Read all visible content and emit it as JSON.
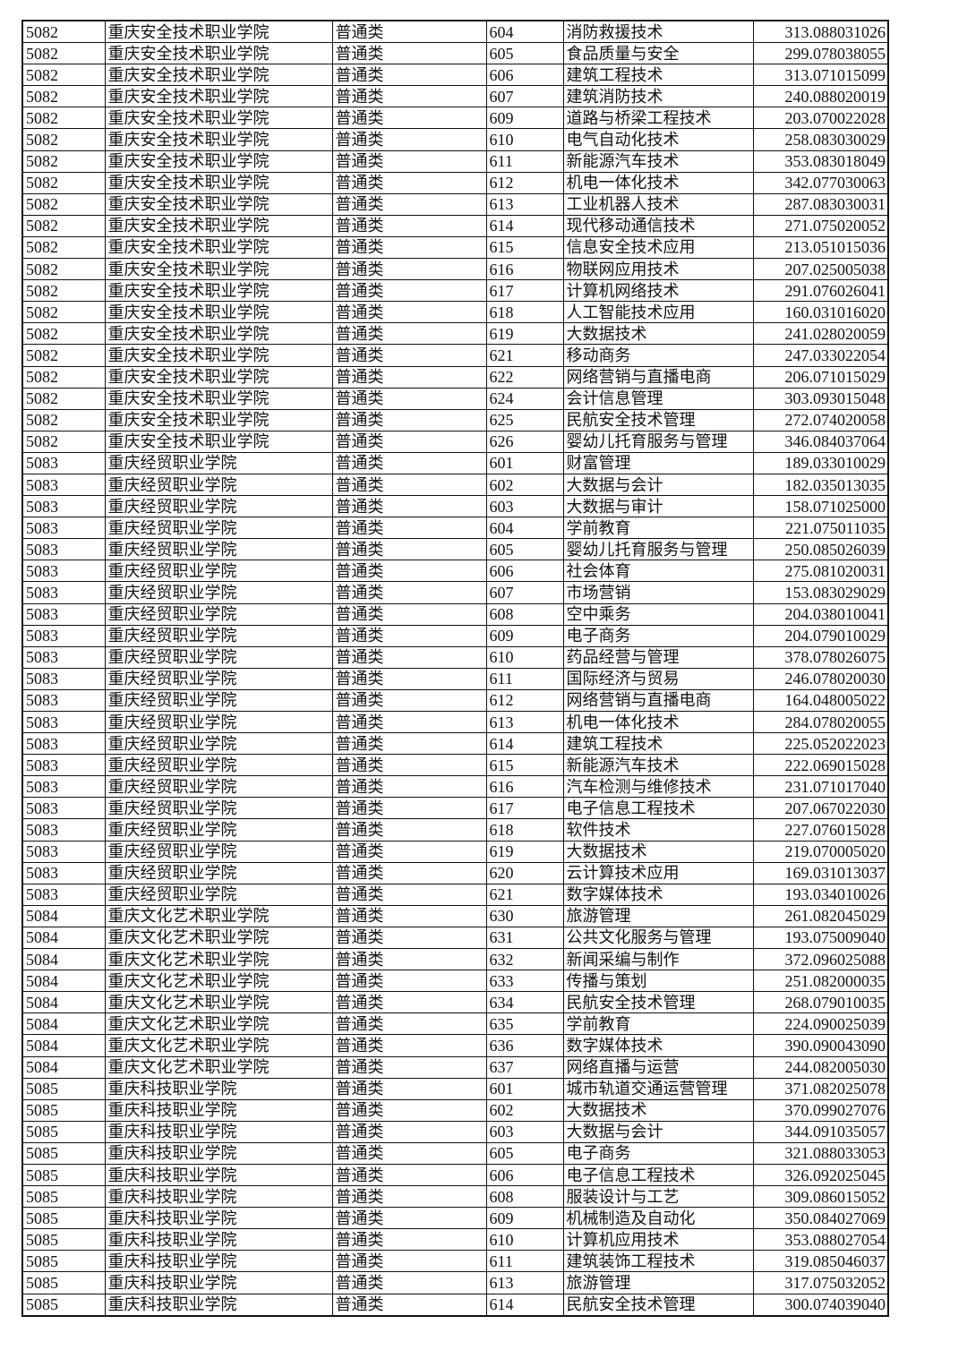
{
  "table": {
    "rows": [
      [
        "5082",
        "重庆安全技术职业学院",
        "普通类",
        "604",
        "消防救援技术",
        "313.088031026"
      ],
      [
        "5082",
        "重庆安全技术职业学院",
        "普通类",
        "605",
        "食品质量与安全",
        "299.078038055"
      ],
      [
        "5082",
        "重庆安全技术职业学院",
        "普通类",
        "606",
        "建筑工程技术",
        "313.071015099"
      ],
      [
        "5082",
        "重庆安全技术职业学院",
        "普通类",
        "607",
        "建筑消防技术",
        "240.088020019"
      ],
      [
        "5082",
        "重庆安全技术职业学院",
        "普通类",
        "609",
        "道路与桥梁工程技术",
        "203.070022028"
      ],
      [
        "5082",
        "重庆安全技术职业学院",
        "普通类",
        "610",
        "电气自动化技术",
        "258.083030029"
      ],
      [
        "5082",
        "重庆安全技术职业学院",
        "普通类",
        "611",
        "新能源汽车技术",
        "353.083018049"
      ],
      [
        "5082",
        "重庆安全技术职业学院",
        "普通类",
        "612",
        "机电一体化技术",
        "342.077030063"
      ],
      [
        "5082",
        "重庆安全技术职业学院",
        "普通类",
        "613",
        "工业机器人技术",
        "287.083030031"
      ],
      [
        "5082",
        "重庆安全技术职业学院",
        "普通类",
        "614",
        "现代移动通信技术",
        "271.075020052"
      ],
      [
        "5082",
        "重庆安全技术职业学院",
        "普通类",
        "615",
        "信息安全技术应用",
        "213.051015036"
      ],
      [
        "5082",
        "重庆安全技术职业学院",
        "普通类",
        "616",
        "物联网应用技术",
        "207.025005038"
      ],
      [
        "5082",
        "重庆安全技术职业学院",
        "普通类",
        "617",
        "计算机网络技术",
        "291.076026041"
      ],
      [
        "5082",
        "重庆安全技术职业学院",
        "普通类",
        "618",
        "人工智能技术应用",
        "160.031016020"
      ],
      [
        "5082",
        "重庆安全技术职业学院",
        "普通类",
        "619",
        "大数据技术",
        "241.028020059"
      ],
      [
        "5082",
        "重庆安全技术职业学院",
        "普通类",
        "621",
        "移动商务",
        "247.033022054"
      ],
      [
        "5082",
        "重庆安全技术职业学院",
        "普通类",
        "622",
        "网络营销与直播电商",
        "206.071015029"
      ],
      [
        "5082",
        "重庆安全技术职业学院",
        "普通类",
        "624",
        "会计信息管理",
        "303.093015048"
      ],
      [
        "5082",
        "重庆安全技术职业学院",
        "普通类",
        "625",
        "民航安全技术管理",
        "272.074020058"
      ],
      [
        "5082",
        "重庆安全技术职业学院",
        "普通类",
        "626",
        "婴幼儿托育服务与管理",
        "346.084037064"
      ],
      [
        "5083",
        "重庆经贸职业学院",
        "普通类",
        "601",
        "财富管理",
        "189.033010029"
      ],
      [
        "5083",
        "重庆经贸职业学院",
        "普通类",
        "602",
        "大数据与会计",
        "182.035013035"
      ],
      [
        "5083",
        "重庆经贸职业学院",
        "普通类",
        "603",
        "大数据与审计",
        "158.071025000"
      ],
      [
        "5083",
        "重庆经贸职业学院",
        "普通类",
        "604",
        "学前教育",
        "221.075011035"
      ],
      [
        "5083",
        "重庆经贸职业学院",
        "普通类",
        "605",
        "婴幼儿托育服务与管理",
        "250.085026039"
      ],
      [
        "5083",
        "重庆经贸职业学院",
        "普通类",
        "606",
        "社会体育",
        "275.081020031"
      ],
      [
        "5083",
        "重庆经贸职业学院",
        "普通类",
        "607",
        "市场营销",
        "153.083029029"
      ],
      [
        "5083",
        "重庆经贸职业学院",
        "普通类",
        "608",
        "空中乘务",
        "204.038010041"
      ],
      [
        "5083",
        "重庆经贸职业学院",
        "普通类",
        "609",
        "电子商务",
        "204.079010029"
      ],
      [
        "5083",
        "重庆经贸职业学院",
        "普通类",
        "610",
        "药品经营与管理",
        "378.078026075"
      ],
      [
        "5083",
        "重庆经贸职业学院",
        "普通类",
        "611",
        "国际经济与贸易",
        "246.078020030"
      ],
      [
        "5083",
        "重庆经贸职业学院",
        "普通类",
        "612",
        "网络营销与直播电商",
        "164.048005022"
      ],
      [
        "5083",
        "重庆经贸职业学院",
        "普通类",
        "613",
        "机电一体化技术",
        "284.078020055"
      ],
      [
        "5083",
        "重庆经贸职业学院",
        "普通类",
        "614",
        "建筑工程技术",
        "225.052022023"
      ],
      [
        "5083",
        "重庆经贸职业学院",
        "普通类",
        "615",
        "新能源汽车技术",
        "222.069015028"
      ],
      [
        "5083",
        "重庆经贸职业学院",
        "普通类",
        "616",
        "汽车检测与维修技术",
        "231.071017040"
      ],
      [
        "5083",
        "重庆经贸职业学院",
        "普通类",
        "617",
        "电子信息工程技术",
        "207.067022030"
      ],
      [
        "5083",
        "重庆经贸职业学院",
        "普通类",
        "618",
        "软件技术",
        "227.076015028"
      ],
      [
        "5083",
        "重庆经贸职业学院",
        "普通类",
        "619",
        "大数据技术",
        "219.070005020"
      ],
      [
        "5083",
        "重庆经贸职业学院",
        "普通类",
        "620",
        "云计算技术应用",
        "169.031013037"
      ],
      [
        "5083",
        "重庆经贸职业学院",
        "普通类",
        "621",
        "数字媒体技术",
        "193.034010026"
      ],
      [
        "5084",
        "重庆文化艺术职业学院",
        "普通类",
        "630",
        "旅游管理",
        "261.082045029"
      ],
      [
        "5084",
        "重庆文化艺术职业学院",
        "普通类",
        "631",
        "公共文化服务与管理",
        "193.075009040"
      ],
      [
        "5084",
        "重庆文化艺术职业学院",
        "普通类",
        "632",
        "新闻采编与制作",
        "372.096025088"
      ],
      [
        "5084",
        "重庆文化艺术职业学院",
        "普通类",
        "633",
        "传播与策划",
        "251.082000035"
      ],
      [
        "5084",
        "重庆文化艺术职业学院",
        "普通类",
        "634",
        "民航安全技术管理",
        "268.079010035"
      ],
      [
        "5084",
        "重庆文化艺术职业学院",
        "普通类",
        "635",
        "学前教育",
        "224.090025039"
      ],
      [
        "5084",
        "重庆文化艺术职业学院",
        "普通类",
        "636",
        "数字媒体技术",
        "390.090043090"
      ],
      [
        "5084",
        "重庆文化艺术职业学院",
        "普通类",
        "637",
        "网络直播与运营",
        "244.082005030"
      ],
      [
        "5085",
        "重庆科技职业学院",
        "普通类",
        "601",
        "城市轨道交通运营管理",
        "371.082025078"
      ],
      [
        "5085",
        "重庆科技职业学院",
        "普通类",
        "602",
        "大数据技术",
        "370.099027076"
      ],
      [
        "5085",
        "重庆科技职业学院",
        "普通类",
        "603",
        "大数据与会计",
        "344.091035057"
      ],
      [
        "5085",
        "重庆科技职业学院",
        "普通类",
        "605",
        "电子商务",
        "321.088033053"
      ],
      [
        "5085",
        "重庆科技职业学院",
        "普通类",
        "606",
        "电子信息工程技术",
        "326.092025045"
      ],
      [
        "5085",
        "重庆科技职业学院",
        "普通类",
        "608",
        "服装设计与工艺",
        "309.086015052"
      ],
      [
        "5085",
        "重庆科技职业学院",
        "普通类",
        "609",
        "机械制造及自动化",
        "350.084027069"
      ],
      [
        "5085",
        "重庆科技职业学院",
        "普通类",
        "610",
        "计算机应用技术",
        "353.088027054"
      ],
      [
        "5085",
        "重庆科技职业学院",
        "普通类",
        "611",
        "建筑装饰工程技术",
        "319.085046037"
      ],
      [
        "5085",
        "重庆科技职业学院",
        "普通类",
        "613",
        "旅游管理",
        "317.075032052"
      ],
      [
        "5085",
        "重庆科技职业学院",
        "普通类",
        "614",
        "民航安全技术管理",
        "300.074039040"
      ]
    ]
  }
}
